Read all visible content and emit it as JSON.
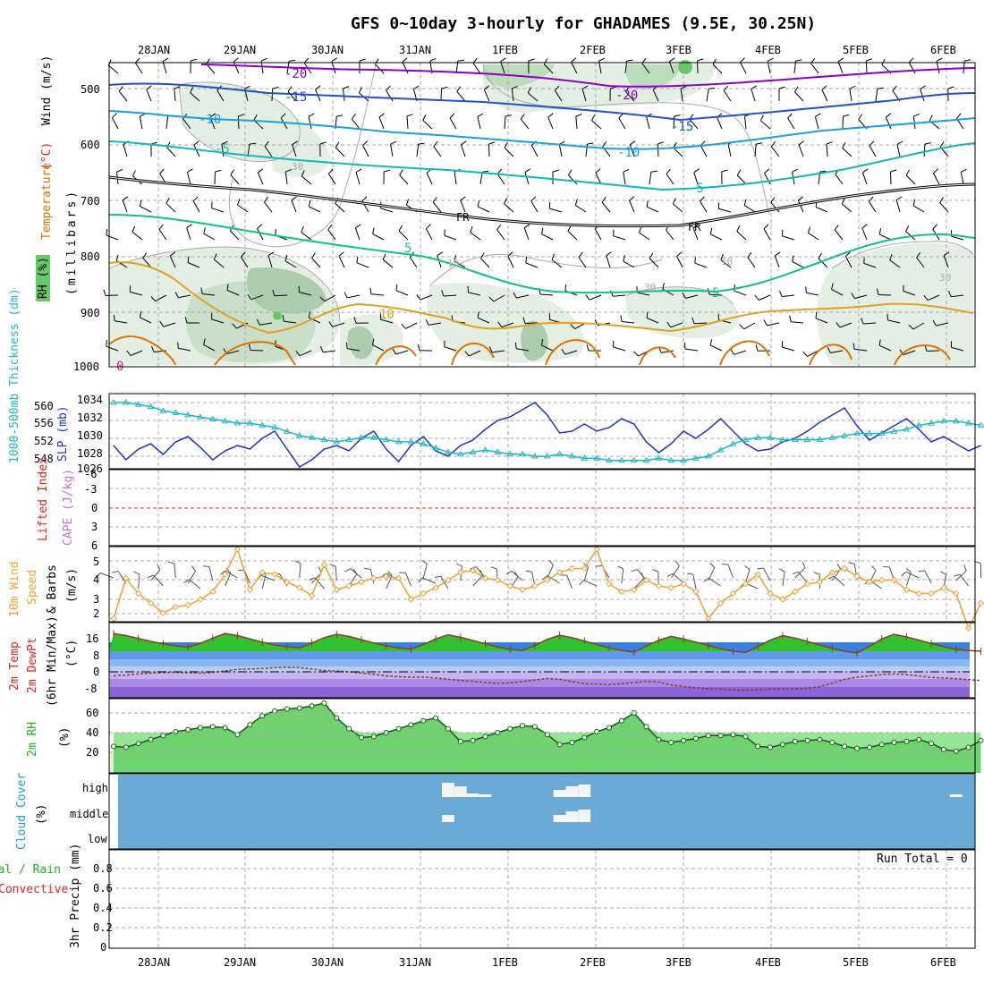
{
  "title": "GFS 0~10day 3-hourly for GHADAMES (9.5E, 30.25N)",
  "dates": [
    "28JAN",
    "29JAN",
    "30JAN",
    "31JAN",
    "1FEB",
    "2FEB",
    "3FEB",
    "4FEB",
    "5FEB",
    "6FEB"
  ],
  "colors": {
    "purple": "#8a00c8",
    "blue": "#2050d0",
    "skyblue": "#1aa0e0",
    "teal": "#10b8b8",
    "green": "#10c090",
    "black": "#000000",
    "orange": "#e0a020",
    "darkorange": "#e07000",
    "slp": "#1c34c8",
    "thick": "#20b8c0",
    "wind10": "#f0a030",
    "rhfill": "#40d040",
    "cloudbg": "#6aaad6",
    "temp_warm": "#30c030",
    "temp_band_blue": "#3a80e0",
    "temp_band_purple": "#7a50d0",
    "red": "#e02020"
  },
  "panels": {
    "upper": {
      "label_rh": "RH (%)",
      "label_temp": "Temperature",
      "label_tempunit": "(°C)",
      "label_wind": "Wind (m/s)",
      "label_units": "(millibars)",
      "yticks": [
        "500",
        "600",
        "700",
        "800",
        "900",
        "1000"
      ],
      "contour_labels": [
        "-20",
        "-15",
        "-10",
        "-5",
        "-20",
        "-15",
        "-10",
        "-5",
        "FR",
        "FR",
        "5",
        "5",
        "10",
        "10",
        "10",
        "30",
        "30",
        "30",
        "0"
      ]
    },
    "slp": {
      "label_thick": "1000-500mb Thickness (dm)",
      "label_slp": "SLP (mb)",
      "left_ticks": [
        "560",
        "556",
        "552",
        "548"
      ],
      "right_ticks": [
        "1034",
        "1032",
        "1030",
        "1028",
        "1026"
      ]
    },
    "cape": {
      "label_li": "Lifted Index",
      "label_cape": "CAPE (J/kg)",
      "ticks": [
        "-6",
        "-3",
        "0",
        "3",
        "6"
      ]
    },
    "wind10": {
      "label_a": "10m Wind",
      "label_b": "Speed",
      "label_c": "& Barbs",
      "label_unit": "(m/s)",
      "ticks": [
        "5",
        "4",
        "3",
        "2"
      ]
    },
    "temp2m": {
      "label_a": "2m Temp",
      "label_b": "2m DewPt",
      "label_c": "(6hr Min/Max)",
      "label_unit": "(°C)",
      "ticks": [
        "16",
        "8",
        "0",
        "-8"
      ]
    },
    "rh2m": {
      "label_a": "2m RH",
      "label_unit": "(%)",
      "ticks": [
        "60",
        "40",
        "20"
      ]
    },
    "cloud": {
      "label_a": "Cloud Cover",
      "label_unit": "(%)",
      "levels": [
        "high",
        "middle",
        "low"
      ]
    },
    "precip": {
      "label_a": "Total / Rain",
      "label_b": "Convective",
      "label_c": "3hr Precip (mm)",
      "run_total": "Run Total = 0",
      "ticks": [
        "0.8",
        "0.6",
        "0.4",
        "0.2",
        "0"
      ]
    }
  },
  "chart_data": [
    {
      "type": "line",
      "title": "1000-500mb Thickness / SLP",
      "series": [
        {
          "name": "SLP (mb)",
          "values": [
            1029.2,
            1027.6,
            1028.8,
            1029.4,
            1028.2,
            1029.6,
            1030.2,
            1029.0,
            1027.6,
            1028.6,
            1029.2,
            1028.8,
            1030.0,
            1030.8,
            1028.8,
            1026.8,
            1027.6,
            1028.8,
            1029.2,
            1028.6,
            1030.0,
            1030.8,
            1028.8,
            1027.4,
            1029.2,
            1030.2,
            1028.6,
            1028.0,
            1029.2,
            1029.8,
            1031.0,
            1032.0,
            1032.4,
            1033.2,
            1034.0,
            1032.6,
            1030.6,
            1030.8,
            1031.6,
            1030.8,
            1031.2,
            1032.2,
            1031.6,
            1029.6,
            1028.4,
            1029.4,
            1030.8,
            1030.0,
            1031.0,
            1032.2,
            1030.8,
            1029.4,
            1028.6,
            1028.8,
            1029.6,
            1030.0,
            1030.8,
            1031.8,
            1032.6,
            1033.4,
            1031.4,
            1029.8,
            1030.6,
            1031.4,
            1032.2,
            1031.0,
            1029.6,
            1030.2,
            1029.4,
            1028.6,
            1029.2
          ]
        },
        {
          "name": "1000-500mb Thickness (dm)",
          "values": [
            561.0,
            561.0,
            560.5,
            560.0,
            559.0,
            558.5,
            558.0,
            557.5,
            557.0,
            556.5,
            556.0,
            556.0,
            555.5,
            555.0,
            554.0,
            553.0,
            552.5,
            552.0,
            551.5,
            552.0,
            552.5,
            552.5,
            552.0,
            551.5,
            551.5,
            551.0,
            550.0,
            549.0,
            548.5,
            549.0,
            549.5,
            549.0,
            548.5,
            548.5,
            548.0,
            548.0,
            548.5,
            548.0,
            547.5,
            547.5,
            547.0,
            547.0,
            547.0,
            547.0,
            547.5,
            547.0,
            547.0,
            547.5,
            548.0,
            549.5,
            551.0,
            552.0,
            552.5,
            552.5,
            552.0,
            552.0,
            552.0,
            552.0,
            552.5,
            553.0,
            553.5,
            553.5,
            553.5,
            554.0,
            554.5,
            555.5,
            556.0,
            556.5,
            556.5,
            556.0,
            555.5
          ]
        }
      ]
    },
    {
      "type": "line",
      "title": "10m Wind Speed",
      "values": [
        2.0,
        4.1,
        3.3,
        2.8,
        2.3,
        2.6,
        2.7,
        3.0,
        3.4,
        4.3,
        5.6,
        3.5,
        4.4,
        4.3,
        3.9,
        3.6,
        3.2,
        4.8,
        3.5,
        3.7,
        3.9,
        4.1,
        4.2,
        4.1,
        3.0,
        3.3,
        3.6,
        4.0,
        4.4,
        4.5,
        4.1,
        4.0,
        3.7,
        3.5,
        3.7,
        4.0,
        4.4,
        4.6,
        4.6,
        5.6,
        3.8,
        3.4,
        3.5,
        4.0,
        3.7,
        3.6,
        3.8,
        3.4,
        2.0,
        2.8,
        3.3,
        3.8,
        4.3,
        3.3,
        3.0,
        3.4,
        3.8,
        3.9,
        4.4,
        4.6,
        4.2,
        3.9,
        4.0,
        4.0,
        3.5,
        3.3,
        3.3,
        3.6,
        3.3,
        1.5,
        2.8
      ]
    },
    {
      "type": "line",
      "title": "2m Temp / DewPt",
      "series": [
        {
          "name": "2m Temp",
          "values": [
            18.6,
            17.6,
            16.2,
            14.8,
            13.6,
            12.6,
            12.0,
            13.8,
            16.4,
            18.6,
            17.6,
            16.0,
            14.4,
            13.0,
            12.2,
            11.6,
            14.0,
            16.6,
            18.2,
            17.2,
            15.6,
            14.0,
            12.6,
            11.6,
            11.0,
            13.2,
            16.0,
            18.0,
            16.8,
            15.2,
            13.6,
            12.0,
            11.0,
            10.4,
            12.8,
            15.8,
            17.8,
            16.6,
            15.0,
            13.2,
            11.6,
            10.4,
            9.6,
            12.4,
            15.4,
            17.2,
            16.0,
            14.4,
            12.8,
            11.2,
            10.0,
            9.4,
            12.2,
            15.4,
            17.6,
            16.4,
            14.8,
            13.0,
            11.4,
            10.0,
            9.2,
            12.4,
            16.0,
            18.2,
            17.0,
            15.4,
            13.8,
            12.2,
            11.0,
            10.4,
            10.0
          ]
        },
        {
          "name": "2m DewPt",
          "values": [
            -2.0,
            -1.6,
            -1.0,
            -0.6,
            -0.4,
            -0.2,
            -0.4,
            -0.6,
            -0.2,
            0.4,
            1.2,
            1.4,
            1.6,
            2.0,
            2.2,
            2.0,
            1.4,
            0.6,
            0.4,
            0.0,
            -0.6,
            -1.2,
            -2.0,
            -2.4,
            -2.6,
            -2.6,
            -3.0,
            -3.6,
            -4.2,
            -4.6,
            -5.2,
            -5.6,
            -5.4,
            -4.8,
            -4.0,
            -3.2,
            -3.6,
            -4.8,
            -5.8,
            -6.0,
            -6.2,
            -5.8,
            -5.2,
            -4.6,
            -5.0,
            -6.4,
            -7.2,
            -7.8,
            -8.2,
            -8.4,
            -8.8,
            -9.0,
            -8.6,
            -8.4,
            -8.2,
            -8.4,
            -8.0,
            -7.2,
            -5.6,
            -3.6,
            -2.6,
            -2.0,
            -1.4,
            -1.0,
            -1.4,
            -2.0,
            -2.8,
            -3.0,
            -3.4,
            -3.8,
            -4.2
          ]
        }
      ]
    },
    {
      "type": "area",
      "title": "2m RH",
      "values": [
        26,
        25,
        29,
        33,
        37,
        41,
        43,
        45,
        46,
        45,
        38,
        48,
        57,
        62,
        64,
        65,
        67,
        70,
        55,
        44,
        35,
        36,
        40,
        44,
        48,
        52,
        55,
        44,
        31,
        32,
        36,
        40,
        44,
        47,
        46,
        38,
        28,
        30,
        35,
        41,
        45,
        52,
        60,
        46,
        33,
        30,
        32,
        34,
        37,
        37,
        38,
        36,
        26,
        25,
        28,
        31,
        32,
        33,
        30,
        26,
        24,
        25,
        28,
        30,
        31,
        33,
        29,
        23,
        21,
        25,
        32
      ]
    },
    {
      "type": "bar",
      "title": "Cloud Cover",
      "series": [
        {
          "name": "high",
          "values": [
            0,
            0,
            0,
            0,
            0,
            0,
            0,
            0,
            0,
            0,
            0,
            0,
            0,
            0,
            0,
            0,
            0,
            0,
            0,
            0,
            0,
            0,
            0,
            0,
            0,
            0,
            0,
            80,
            60,
            20,
            15,
            0,
            0,
            0,
            0,
            0,
            40,
            60,
            70,
            0,
            0,
            0,
            0,
            0,
            0,
            0,
            0,
            0,
            0,
            0,
            0,
            0,
            0,
            0,
            0,
            0,
            0,
            0,
            0,
            0,
            0,
            0,
            0,
            0,
            0,
            0,
            0,
            0,
            15,
            0,
            0
          ]
        },
        {
          "name": "middle",
          "values": [
            0,
            0,
            0,
            0,
            0,
            0,
            0,
            0,
            0,
            0,
            0,
            0,
            0,
            0,
            0,
            0,
            0,
            0,
            0,
            0,
            0,
            0,
            0,
            0,
            0,
            0,
            0,
            40,
            0,
            0,
            0,
            0,
            0,
            0,
            0,
            0,
            40,
            60,
            70,
            0,
            0,
            0,
            0,
            0,
            0,
            0,
            0,
            0,
            0,
            0,
            0,
            0,
            0,
            0,
            0,
            0,
            0,
            0,
            0,
            0,
            0,
            0,
            0,
            0,
            0,
            0,
            0,
            0,
            0,
            0,
            0
          ]
        }
      ]
    },
    {
      "type": "bar",
      "title": "3hr Precip (mm)",
      "values": [
        0,
        0,
        0,
        0,
        0,
        0,
        0,
        0,
        0,
        0,
        0,
        0,
        0,
        0,
        0,
        0,
        0,
        0,
        0,
        0,
        0,
        0,
        0,
        0,
        0,
        0,
        0,
        0,
        0,
        0,
        0,
        0,
        0,
        0,
        0,
        0,
        0,
        0,
        0,
        0,
        0,
        0,
        0,
        0,
        0,
        0,
        0,
        0,
        0,
        0,
        0,
        0,
        0,
        0,
        0,
        0,
        0,
        0,
        0,
        0,
        0,
        0,
        0,
        0,
        0,
        0,
        0,
        0,
        0,
        0,
        0
      ],
      "ylim": [
        0,
        1.0
      ]
    }
  ]
}
